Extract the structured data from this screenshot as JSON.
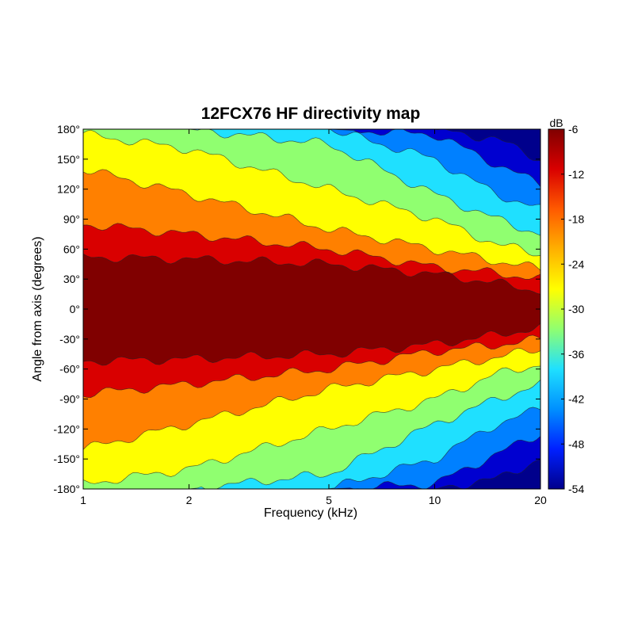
{
  "chart_data": {
    "type": "heatmap",
    "title": "12FCX76 HF directivity map",
    "xlabel": "Frequency (kHz)",
    "ylabel": "Angle from axis (degrees)",
    "x_scale": "log",
    "xlim": [
      1,
      20
    ],
    "ylim": [
      -180,
      180
    ],
    "x_ticks": [
      {
        "value": 1,
        "label": "1"
      },
      {
        "value": 2,
        "label": "2"
      },
      {
        "value": 5,
        "label": "5"
      },
      {
        "value": 10,
        "label": "10"
      },
      {
        "value": 20,
        "label": "20"
      }
    ],
    "y_ticks": [
      {
        "value": 180,
        "label": "180°"
      },
      {
        "value": 150,
        "label": "150°"
      },
      {
        "value": 120,
        "label": "120°"
      },
      {
        "value": 90,
        "label": "90°"
      },
      {
        "value": 60,
        "label": "60°"
      },
      {
        "value": 30,
        "label": "30°"
      },
      {
        "value": 0,
        "label": "0°"
      },
      {
        "value": -30,
        "label": "-30°"
      },
      {
        "value": -60,
        "label": "-60°"
      },
      {
        "value": -90,
        "label": "-90°"
      },
      {
        "value": -120,
        "label": "-120°"
      },
      {
        "value": -150,
        "label": "-150°"
      },
      {
        "value": -180,
        "label": "-180°"
      }
    ],
    "colorbar": {
      "unit": "dB",
      "range": [
        -54,
        -6
      ],
      "ticks": [
        {
          "value": -6,
          "label": "-6"
        },
        {
          "value": -12,
          "label": "-12"
        },
        {
          "value": -18,
          "label": "-18"
        },
        {
          "value": -24,
          "label": "-24"
        },
        {
          "value": -30,
          "label": "-30"
        },
        {
          "value": -36,
          "label": "-36"
        },
        {
          "value": -42,
          "label": "-42"
        },
        {
          "value": -48,
          "label": "-48"
        },
        {
          "value": -54,
          "label": "-54"
        }
      ]
    },
    "contour_levels": [
      {
        "upper": -6,
        "color": "#800000"
      },
      {
        "upper": -12,
        "color": "#d90000"
      },
      {
        "upper": -18,
        "color": "#ff8000"
      },
      {
        "upper": -24,
        "color": "#ffff00"
      },
      {
        "upper": -30,
        "color": "#90ff70"
      },
      {
        "upper": -36,
        "color": "#1fe0ff"
      },
      {
        "upper": -42,
        "color": "#0080ff"
      },
      {
        "upper": -48,
        "color": "#0000d0"
      }
    ],
    "contour_boundaries_deg": [
      {
        "level_dB": -6,
        "angle": [
          [
            1,
            52
          ],
          [
            2,
            50
          ],
          [
            5,
            45
          ],
          [
            10,
            35
          ],
          [
            15,
            26
          ],
          [
            20,
            18
          ]
        ]
      },
      {
        "level_dB": -12,
        "angle": [
          [
            1,
            85
          ],
          [
            2,
            75
          ],
          [
            5,
            60
          ],
          [
            10,
            42
          ],
          [
            15,
            36
          ],
          [
            20,
            30
          ]
        ]
      },
      {
        "level_dB": -18,
        "angle": [
          [
            1,
            140
          ],
          [
            2,
            115
          ],
          [
            5,
            80
          ],
          [
            10,
            60
          ],
          [
            15,
            48
          ],
          [
            20,
            40
          ]
        ]
      },
      {
        "level_dB": -24,
        "angle": [
          [
            1,
            175
          ],
          [
            2,
            160
          ],
          [
            5,
            120
          ],
          [
            10,
            90
          ],
          [
            15,
            65
          ],
          [
            20,
            55
          ]
        ]
      },
      {
        "level_dB": -30,
        "angle": [
          [
            1,
            180
          ],
          [
            2,
            180
          ],
          [
            5,
            165
          ],
          [
            10,
            115
          ],
          [
            15,
            90
          ],
          [
            20,
            75
          ]
        ]
      },
      {
        "level_dB": -36,
        "angle": [
          [
            1,
            180
          ],
          [
            2,
            180
          ],
          [
            5,
            180
          ],
          [
            10,
            150
          ],
          [
            15,
            115
          ],
          [
            20,
            100
          ]
        ]
      },
      {
        "level_dB": -42,
        "angle": [
          [
            1,
            180
          ],
          [
            2,
            180
          ],
          [
            5,
            180
          ],
          [
            10,
            175
          ],
          [
            15,
            145
          ],
          [
            20,
            125
          ]
        ]
      },
      {
        "level_dB": -48,
        "angle": [
          [
            1,
            180
          ],
          [
            2,
            180
          ],
          [
            5,
            180
          ],
          [
            10,
            180
          ],
          [
            15,
            170
          ],
          [
            20,
            150
          ]
        ]
      }
    ]
  }
}
